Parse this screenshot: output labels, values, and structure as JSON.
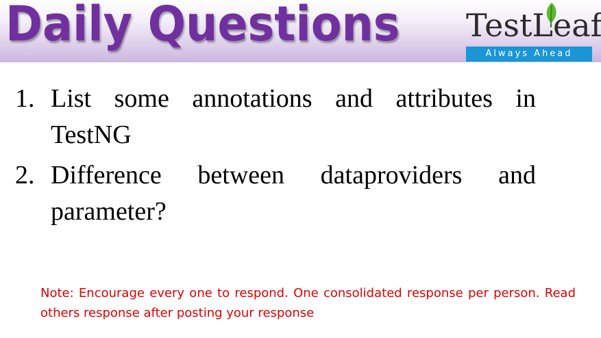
{
  "header": {
    "title": "Daily Questions",
    "logo": {
      "brand": "TestLeaf",
      "tagline": "Always Ahead",
      "icon": "leaf-icon",
      "tagline_bg": "#1a95d6"
    },
    "title_color": "#7030a0"
  },
  "questions": [
    {
      "number": "1.",
      "text": "List some annotations and attributes in TestNG"
    },
    {
      "number": "2.",
      "text": "Difference between dataproviders and parameter?"
    }
  ],
  "note": {
    "text": "Note: Encourage every one to respond. One consolidated response per person. Read others response after posting your response",
    "color": "#e00000"
  }
}
